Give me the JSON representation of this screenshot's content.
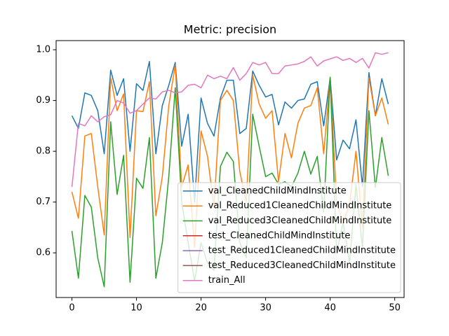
{
  "chart_data": {
    "type": "line",
    "title": "Metric: precision",
    "x": [
      0,
      1,
      2,
      3,
      4,
      5,
      6,
      7,
      8,
      9,
      10,
      11,
      12,
      13,
      14,
      15,
      16,
      17,
      18,
      19,
      20,
      21,
      22,
      23,
      24,
      25,
      26,
      27,
      28,
      29,
      30,
      31,
      32,
      33,
      34,
      35,
      36,
      37,
      38,
      39,
      40,
      41,
      42,
      43,
      44,
      45,
      46,
      47,
      48,
      49
    ],
    "series": [
      {
        "name": "val_CleanedChildMindInstitute",
        "color": "#1f77b4",
        "values": [
          0.87,
          0.845,
          0.915,
          0.91,
          0.88,
          0.795,
          0.96,
          0.91,
          0.943,
          0.8,
          0.933,
          0.92,
          0.977,
          0.795,
          0.89,
          0.93,
          0.975,
          0.81,
          0.873,
          0.7,
          0.905,
          0.855,
          0.83,
          0.905,
          0.94,
          0.94,
          0.835,
          0.845,
          0.958,
          0.93,
          0.907,
          0.912,
          0.852,
          0.897,
          0.885,
          0.9,
          0.903,
          0.932,
          0.937,
          0.85,
          0.945,
          0.783,
          0.822,
          0.805,
          0.862,
          0.73,
          0.955,
          0.87,
          0.943,
          0.893
        ]
      },
      {
        "name": "val_Reduced1CleanedChildMindInstitute",
        "color": "#ff7f0e",
        "values": [
          0.72,
          0.668,
          0.83,
          0.835,
          0.73,
          0.635,
          0.945,
          0.88,
          0.913,
          0.63,
          0.88,
          0.878,
          0.937,
          0.673,
          0.75,
          0.89,
          0.97,
          0.73,
          0.773,
          0.61,
          0.84,
          0.79,
          0.69,
          0.9,
          0.92,
          0.9,
          0.76,
          0.7,
          0.95,
          0.893,
          0.865,
          0.88,
          0.74,
          0.835,
          0.787,
          0.855,
          0.885,
          0.89,
          0.925,
          0.795,
          0.945,
          0.7,
          0.66,
          0.695,
          0.8,
          0.65,
          0.945,
          0.87,
          0.905,
          0.853
        ]
      },
      {
        "name": "val_Reduced3CleanedChildMindInstitute",
        "color": "#2ca02c",
        "values": [
          0.643,
          0.55,
          0.713,
          0.69,
          0.59,
          0.533,
          0.858,
          0.715,
          0.792,
          0.542,
          0.747,
          0.727,
          0.827,
          0.55,
          0.62,
          0.75,
          0.925,
          0.7,
          0.62,
          0.545,
          0.62,
          0.58,
          0.565,
          0.77,
          0.798,
          0.78,
          0.62,
          0.59,
          0.873,
          0.81,
          0.75,
          0.757,
          0.735,
          0.74,
          0.73,
          0.757,
          0.8,
          0.755,
          0.79,
          0.68,
          0.946,
          0.6,
          0.66,
          0.58,
          0.735,
          0.61,
          0.88,
          0.728,
          0.827,
          0.752
        ]
      },
      {
        "name": "test_CleanedChildMindInstitute",
        "color": "#d62728",
        "values": [
          null,
          null,
          null,
          null,
          null,
          null,
          null,
          null,
          null,
          null,
          null,
          null,
          null,
          null,
          null,
          null,
          null,
          null,
          null,
          null,
          null,
          null,
          null,
          null,
          null,
          null,
          null,
          null,
          null,
          null,
          null,
          null,
          null,
          null,
          null,
          null,
          null,
          null,
          null,
          null,
          null,
          null,
          null,
          null,
          null,
          null,
          null,
          null,
          null,
          null
        ]
      },
      {
        "name": "test_Reduced1CleanedChildMindInstitute",
        "color": "#9467bd",
        "values": [
          null,
          null,
          null,
          null,
          null,
          null,
          null,
          null,
          null,
          null,
          null,
          null,
          null,
          null,
          null,
          null,
          null,
          null,
          null,
          null,
          null,
          null,
          null,
          null,
          null,
          null,
          null,
          null,
          null,
          null,
          null,
          null,
          null,
          null,
          null,
          null,
          null,
          null,
          null,
          null,
          null,
          null,
          null,
          null,
          null,
          null,
          null,
          null,
          null,
          null
        ]
      },
      {
        "name": "test_Reduced3CleanedChildMindInstitute",
        "color": "#8c564b",
        "values": [
          null,
          null,
          null,
          null,
          null,
          null,
          null,
          null,
          null,
          null,
          null,
          null,
          null,
          null,
          null,
          null,
          null,
          null,
          null,
          null,
          null,
          null,
          null,
          null,
          null,
          null,
          null,
          null,
          null,
          null,
          null,
          null,
          null,
          null,
          null,
          null,
          null,
          null,
          null,
          null,
          null,
          null,
          null,
          null,
          null,
          null,
          null,
          null,
          null,
          null
        ]
      },
      {
        "name": "train_All",
        "color": "#e377c2",
        "values": [
          0.73,
          0.855,
          0.85,
          0.87,
          0.858,
          0.868,
          0.872,
          0.9,
          0.895,
          0.875,
          0.88,
          0.893,
          0.905,
          0.903,
          0.917,
          0.92,
          0.915,
          0.917,
          0.93,
          0.932,
          0.925,
          0.95,
          0.943,
          0.948,
          0.943,
          0.965,
          0.94,
          0.953,
          0.975,
          0.97,
          0.975,
          0.953,
          0.953,
          0.968,
          0.97,
          0.972,
          0.977,
          0.986,
          0.968,
          0.978,
          0.982,
          0.986,
          0.979,
          0.983,
          0.975,
          0.983,
          0.964,
          0.994,
          0.991,
          0.994
        ]
      }
    ],
    "xlim": [
      -2.45,
      51.45
    ],
    "xticks": [
      0,
      10,
      20,
      30,
      40,
      50
    ],
    "ylim": [
      0.512,
      1.018
    ],
    "yticks": [
      0.6,
      0.7,
      0.8,
      0.9,
      {
        "value": 1.0,
        "label": "1.0"
      }
    ],
    "legend": "lower right"
  }
}
